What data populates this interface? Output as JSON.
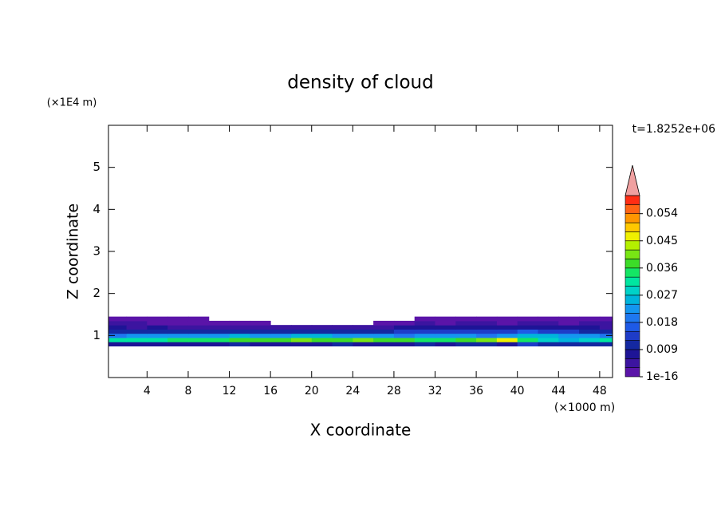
{
  "chart_data": {
    "type": "contour",
    "title": "density of cloud",
    "x_label": "X coordinate",
    "x_unit": "(×1000 m)",
    "y_label": "Z coordinate",
    "y_unit": "(×1E4 m)",
    "time_label": "t=1.8252e+06",
    "xlim": [
      0.25,
      49.25
    ],
    "ylim": [
      0,
      6
    ],
    "xticks": [
      4,
      8,
      12,
      16,
      20,
      24,
      28,
      32,
      36,
      40,
      44,
      48
    ],
    "yticks": [
      1,
      2,
      3,
      4,
      5
    ],
    "x": [
      1,
      3,
      5,
      7,
      9,
      11,
      13,
      15,
      17,
      19,
      21,
      23,
      25,
      27,
      29,
      31,
      33,
      35,
      37,
      39,
      41,
      43,
      45,
      47,
      49
    ],
    "z": [
      0.8,
      0.9,
      1.0,
      1.1,
      1.2,
      1.3,
      1.4
    ],
    "values": [
      [
        0.008,
        0.007,
        0.006,
        0.008,
        0.008,
        0.007,
        0.009,
        0.008,
        0.008,
        0.007,
        0.008,
        0.009,
        0.008,
        0.007,
        0.008,
        0.009,
        0.008,
        0.01,
        0.009,
        0.008,
        0.012,
        0.01,
        0.009,
        0.01,
        0.009
      ],
      [
        0.03,
        0.032,
        0.031,
        0.033,
        0.034,
        0.035,
        0.036,
        0.037,
        0.038,
        0.04,
        0.038,
        0.037,
        0.039,
        0.036,
        0.038,
        0.034,
        0.035,
        0.036,
        0.04,
        0.045,
        0.033,
        0.028,
        0.026,
        0.028,
        0.03
      ],
      [
        0.02,
        0.021,
        0.022,
        0.021,
        0.023,
        0.022,
        0.024,
        0.023,
        0.022,
        0.024,
        0.025,
        0.023,
        0.022,
        0.021,
        0.02,
        0.022,
        0.023,
        0.021,
        0.02,
        0.022,
        0.026,
        0.024,
        0.021,
        0.022,
        0.02
      ],
      [
        0.009,
        0.01,
        0.01,
        0.011,
        0.01,
        0.01,
        0.009,
        0.01,
        0.011,
        0.01,
        0.01,
        0.009,
        0.01,
        0.011,
        0.012,
        0.013,
        0.012,
        0.014,
        0.013,
        0.012,
        0.015,
        0.013,
        0.012,
        0.011,
        0.01
      ],
      [
        0.006,
        0.005,
        0.006,
        0.005,
        0.004,
        0.005,
        0.004,
        0.004,
        0.005,
        0.004,
        0.004,
        0.004,
        0.004,
        0.005,
        0.006,
        0.007,
        0.006,
        0.008,
        0.007,
        0.006,
        0.008,
        0.007,
        0.006,
        0.006,
        0.005
      ],
      [
        0.003,
        0.003,
        0.002,
        0.002,
        0.002,
        0.002,
        0.002,
        0.002,
        null,
        null,
        null,
        null,
        null,
        0.001,
        0.002,
        0.003,
        0.002,
        0.003,
        0.003,
        0.002,
        0.003,
        0.003,
        0.002,
        0.003,
        0.003
      ],
      [
        0.002,
        0.002,
        0.001,
        0.001,
        0.001,
        null,
        null,
        null,
        null,
        null,
        null,
        null,
        null,
        null,
        null,
        0.001,
        0.001,
        0.001,
        0.001,
        0.002,
        0.002,
        0.002,
        0.002,
        0.002,
        0.002
      ]
    ],
    "levels": [
      1e-16,
      0.003,
      0.006,
      0.009,
      0.012,
      0.015,
      0.018,
      0.021,
      0.024,
      0.027,
      0.03,
      0.033,
      0.036,
      0.039,
      0.042,
      0.045,
      0.048,
      0.051,
      0.054,
      0.057,
      0.06
    ],
    "colorbar_ticks": [
      {
        "value": 1e-16,
        "label": "1e-16"
      },
      0.009,
      0.018,
      0.027,
      0.036,
      0.045,
      0.054
    ],
    "colors": [
      "#5a14a8",
      "#3c14a0",
      "#1e1496",
      "#1428a0",
      "#1e3cc8",
      "#1e5ae6",
      "#1e78f0",
      "#1496f0",
      "#00b4dc",
      "#00d2c8",
      "#00e6a0",
      "#14e664",
      "#3cdc28",
      "#78e614",
      "#b4f000",
      "#f0f000",
      "#ffc800",
      "#ff9600",
      "#ff6414",
      "#ff2d14"
    ],
    "extend_color": "#f0a0a0"
  }
}
